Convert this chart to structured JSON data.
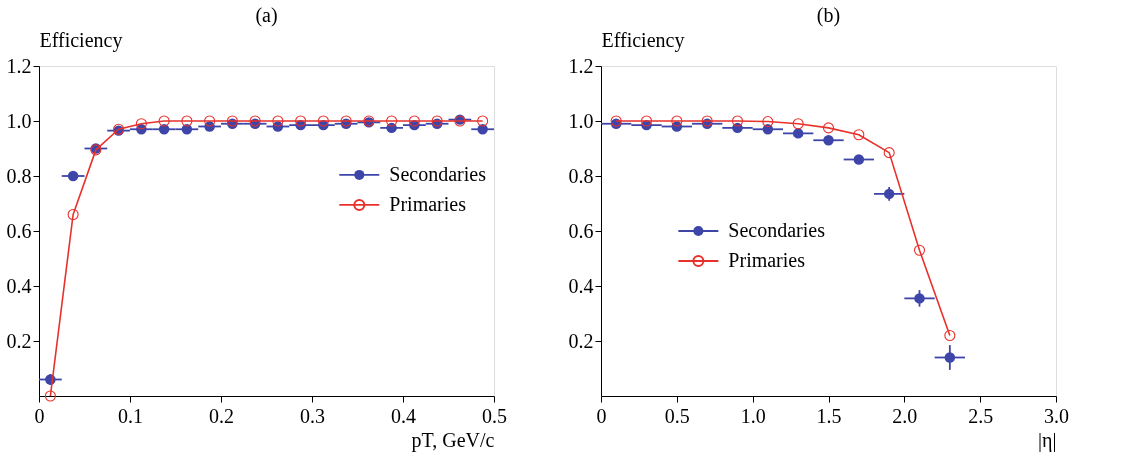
{
  "chart_data": [
    {
      "type": "line",
      "title": "(a)",
      "ylabel": "Efficiency",
      "xlabel": "pT, GeV/c",
      "xlim": [
        0,
        0.5
      ],
      "xticks": [
        0,
        0.1,
        0.2,
        0.3,
        0.4,
        0.5
      ],
      "ylim": [
        0,
        1.2
      ],
      "yticks": [
        0.2,
        0.4,
        0.6,
        0.8,
        {
          "value": 1,
          "label": "1.0"
        },
        1.2
      ],
      "grid": false,
      "legend": "right",
      "series": [
        {
          "name": "Secondaries",
          "type": "scatter",
          "marker": "circle",
          "color": "#3d45a8",
          "x": [
            0.0125,
            0.0375,
            0.0625,
            0.0875,
            0.1125,
            0.1375,
            0.1625,
            0.1875,
            0.2125,
            0.2375,
            0.2625,
            0.2875,
            0.3125,
            0.3375,
            0.3625,
            0.3875,
            0.4125,
            0.4375,
            0.4625,
            0.4875
          ],
          "values": [
            0.06,
            0.8,
            0.9,
            0.965,
            0.97,
            0.97,
            0.97,
            0.98,
            0.99,
            0.99,
            0.98,
            0.985,
            0.985,
            0.99,
            0.995,
            0.975,
            0.985,
            0.99,
            1.005,
            0.97
          ],
          "xerrors": [
            0.0125,
            0.0125,
            0.0125,
            0.0125,
            0.0125,
            0.0125,
            0.0125,
            0.0125,
            0.0125,
            0.0125,
            0.0125,
            0.0125,
            0.0125,
            0.0125,
            0.0125,
            0.0125,
            0.0125,
            0.0125,
            0.0125,
            0.0125
          ],
          "errors": [
            0.02,
            null,
            null,
            null,
            null,
            null,
            null,
            null,
            null,
            null,
            null,
            null,
            null,
            null,
            null,
            null,
            null,
            null,
            null,
            null
          ]
        },
        {
          "name": "Primaries",
          "marker": "circle",
          "line_style": "solid",
          "color": "#e8312b",
          "x": [
            0.0125,
            0.0375,
            0.0625,
            0.0875,
            0.1125,
            0.1375,
            0.1625,
            0.1875,
            0.2125,
            0.2375,
            0.2625,
            0.2875,
            0.3125,
            0.3375,
            0.3625,
            0.3875,
            0.4125,
            0.4375,
            0.4625,
            0.4875
          ],
          "values": [
            0.0,
            0.66,
            0.895,
            0.97,
            0.99,
            1.0,
            1.0,
            1.0,
            1.0,
            1.0,
            1.0,
            1.0,
            1.0,
            1.0,
            1.0,
            1.0,
            1.0,
            1.0,
            1.0,
            1.0
          ]
        }
      ]
    },
    {
      "type": "line",
      "title": "(b)",
      "ylabel": "Efficiency",
      "xlabel": "|η|",
      "xlim": [
        0,
        3.0
      ],
      "xticks": [
        0,
        0.5,
        {
          "value": 1,
          "label": "1.0"
        },
        1.5,
        {
          "value": 2,
          "label": "2.0"
        },
        2.5,
        {
          "value": 3,
          "label": "3.0"
        }
      ],
      "ylim": [
        0,
        1.2
      ],
      "yticks": [
        0.2,
        0.4,
        0.6,
        0.8,
        {
          "value": 1,
          "label": "1.0"
        },
        1.2
      ],
      "grid": false,
      "legend": "left",
      "series": [
        {
          "name": "Secondaries",
          "type": "scatter",
          "marker": "circle",
          "color": "#3d45a8",
          "x": [
            0.1,
            0.3,
            0.5,
            0.7,
            0.9,
            1.1,
            1.3,
            1.5,
            1.7,
            1.9,
            2.1,
            2.3
          ],
          "values": [
            0.99,
            0.985,
            0.98,
            0.99,
            0.975,
            0.97,
            0.955,
            0.93,
            0.86,
            0.735,
            0.355,
            0.14
          ],
          "xerrors": [
            0.1,
            0.1,
            0.1,
            0.1,
            0.1,
            0.1,
            0.1,
            0.1,
            0.1,
            0.1,
            0.1,
            0.1
          ],
          "errors": [
            null,
            null,
            null,
            null,
            null,
            null,
            null,
            null,
            null,
            0.025,
            0.03,
            0.045
          ]
        },
        {
          "name": "Primaries",
          "marker": "circle",
          "line_style": "solid",
          "color": "#e8312b",
          "x": [
            0.1,
            0.3,
            0.5,
            0.7,
            0.9,
            1.1,
            1.3,
            1.5,
            1.7,
            1.9,
            2.1,
            2.3
          ],
          "values": [
            1.0,
            1.0,
            1.0,
            1.0,
            1.0,
            0.998,
            0.99,
            0.975,
            0.95,
            0.885,
            0.53,
            0.22
          ]
        }
      ]
    }
  ]
}
